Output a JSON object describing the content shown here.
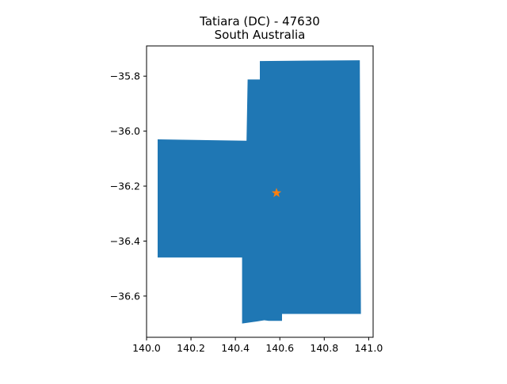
{
  "title": {
    "line1": "Tatiara (DC) - 47630",
    "line2": "South Australia"
  },
  "colors": {
    "region_fill": "#1f77b4",
    "marker": "#ff7f0e",
    "axes": "#000000",
    "background": "#ffffff"
  },
  "chart_data": {
    "type": "map",
    "title": "Tatiara (DC) - 47630\nSouth Australia",
    "xlabel": "",
    "ylabel": "",
    "xlim": [
      140.0,
      141.02
    ],
    "ylim": [
      -36.75,
      -35.69
    ],
    "x_ticks": [
      {
        "value": 140.0,
        "label": "140.0"
      },
      {
        "value": 140.2,
        "label": "140.2"
      },
      {
        "value": 140.4,
        "label": "140.4"
      },
      {
        "value": 140.6,
        "label": "140.6"
      },
      {
        "value": 140.8,
        "label": "140.8"
      },
      {
        "value": 141.0,
        "label": "141.0"
      }
    ],
    "y_ticks": [
      {
        "value": -35.8,
        "label": "−35.8"
      },
      {
        "value": -36.0,
        "label": "−36.0"
      },
      {
        "value": -36.2,
        "label": "−36.2"
      },
      {
        "value": -36.4,
        "label": "−36.4"
      },
      {
        "value": -36.6,
        "label": "−36.6"
      }
    ],
    "grid": false,
    "region": {
      "name": "Tatiara (DC)",
      "boundary": [
        [
          140.05,
          -36.03
        ],
        [
          140.45,
          -36.035
        ],
        [
          140.455,
          -35.812
        ],
        [
          140.51,
          -35.812
        ],
        [
          140.51,
          -35.745
        ],
        [
          140.96,
          -35.742
        ],
        [
          140.965,
          -36.665
        ],
        [
          140.61,
          -36.665
        ],
        [
          140.61,
          -36.69
        ],
        [
          140.55,
          -36.69
        ],
        [
          140.53,
          -36.688
        ],
        [
          140.5,
          -36.692
        ],
        [
          140.43,
          -36.7
        ],
        [
          140.43,
          -36.46
        ],
        [
          140.05,
          -36.46
        ]
      ]
    },
    "marker": {
      "lon": 140.585,
      "lat": -36.225,
      "symbol": "star"
    }
  }
}
